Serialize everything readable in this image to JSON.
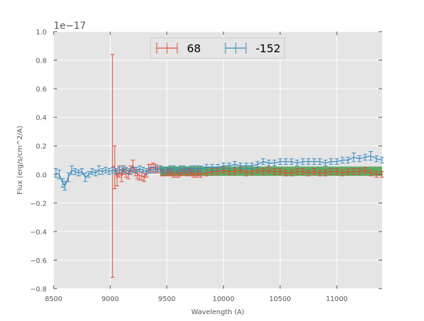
{
  "chart_data": {
    "type": "line",
    "xlabel": "Wavelength (A)",
    "ylabel": "Flux (erg/s/cm^2/A)",
    "offset_text": "1e−17",
    "xlim": [
      8500,
      11400
    ],
    "ylim": [
      -0.8,
      1.0
    ],
    "x_ticks": [
      8500,
      9000,
      9500,
      10000,
      10500,
      11000
    ],
    "x_tick_labels": [
      "8500",
      "9000",
      "9500",
      "10000",
      "10500",
      "11000"
    ],
    "y_ticks": [
      -0.8,
      -0.6,
      -0.4,
      -0.2,
      0.0,
      0.2,
      0.4,
      0.6,
      0.8,
      1.0
    ],
    "y_tick_labels": [
      "−0.8",
      "−0.6",
      "−0.4",
      "−0.2",
      "0.0",
      "0.2",
      "0.4",
      "0.6",
      "0.8",
      "1.0"
    ],
    "grid": true,
    "legend_placement": "top-center",
    "background_color": "#e5e5e5",
    "band": {
      "x_start": 9440,
      "x_end": 11400,
      "y_low": -0.01,
      "y_high": 0.055,
      "color": "#4a9e4a"
    },
    "series": [
      {
        "name": "68",
        "color": "#e24a33",
        "x": [
          9020,
          9040,
          9060,
          9080,
          9100,
          9120,
          9140,
          9160,
          9180,
          9200,
          9220,
          9240,
          9260,
          9280,
          9300,
          9320,
          9340,
          9360,
          9380,
          9400,
          9420,
          9440,
          9460,
          9480,
          9500,
          9520,
          9540,
          9560,
          9580,
          9600,
          9620,
          9640,
          9660,
          9680,
          9700,
          9720,
          9740,
          9760,
          9780,
          9800,
          9850,
          9900,
          9950,
          10000,
          10050,
          10100,
          10150,
          10200,
          10250,
          10300,
          10350,
          10400,
          10450,
          10500,
          10550,
          10600,
          10650,
          10700,
          10750,
          10800,
          10850,
          10900,
          10950,
          11000,
          11050,
          11100,
          11150,
          11200,
          11250,
          11300,
          11350,
          11400
        ],
        "y": [
          0.06,
          0.05,
          -0.02,
          0.02,
          -0.01,
          0.03,
          0.01,
          0.0,
          0.03,
          0.06,
          0.02,
          0.0,
          -0.01,
          -0.01,
          -0.02,
          0.01,
          0.04,
          0.04,
          0.05,
          0.04,
          0.03,
          0.04,
          0.01,
          0.01,
          0.01,
          0.02,
          0.01,
          0.0,
          0.0,
          0.0,
          0.01,
          0.02,
          0.02,
          0.01,
          0.02,
          0.01,
          0.0,
          0.0,
          0.01,
          0.0,
          0.01,
          0.02,
          0.02,
          0.03,
          0.02,
          0.02,
          0.03,
          0.01,
          0.02,
          0.03,
          0.02,
          0.03,
          0.02,
          0.02,
          0.01,
          0.01,
          0.02,
          0.02,
          0.01,
          0.02,
          0.01,
          0.01,
          0.02,
          0.02,
          0.01,
          0.02,
          0.02,
          0.02,
          0.03,
          0.01,
          0.0,
          0.0
        ],
        "err": [
          0.78,
          0.15,
          0.06,
          0.04,
          0.04,
          0.03,
          0.03,
          0.03,
          0.03,
          0.04,
          0.03,
          0.03,
          0.03,
          0.03,
          0.03,
          0.03,
          0.03,
          0.03,
          0.03,
          0.03,
          0.02,
          0.02,
          0.02,
          0.02,
          0.02,
          0.02,
          0.02,
          0.02,
          0.02,
          0.02,
          0.02,
          0.02,
          0.02,
          0.02,
          0.02,
          0.02,
          0.02,
          0.02,
          0.02,
          0.02,
          0.02,
          0.02,
          0.02,
          0.02,
          0.02,
          0.02,
          0.02,
          0.02,
          0.02,
          0.02,
          0.02,
          0.02,
          0.02,
          0.02,
          0.02,
          0.02,
          0.02,
          0.02,
          0.02,
          0.02,
          0.02,
          0.02,
          0.02,
          0.02,
          0.02,
          0.02,
          0.02,
          0.02,
          0.02,
          0.02,
          0.02,
          0.02
        ]
      },
      {
        "name": "-152",
        "color": "#348abd",
        "x": [
          8520,
          8550,
          8580,
          8600,
          8630,
          8660,
          8690,
          8720,
          8750,
          8780,
          8810,
          8840,
          8870,
          8900,
          8930,
          8960,
          8990,
          9020,
          9050,
          9080,
          9110,
          9140,
          9170,
          9200,
          9230,
          9260,
          9290,
          9320,
          9350,
          9380,
          9410,
          9440,
          9470,
          9500,
          9530,
          9560,
          9590,
          9620,
          9650,
          9680,
          9710,
          9740,
          9770,
          9800,
          9850,
          9900,
          9950,
          10000,
          10050,
          10100,
          10150,
          10200,
          10250,
          10300,
          10350,
          10400,
          10450,
          10500,
          10550,
          10600,
          10650,
          10700,
          10750,
          10800,
          10850,
          10900,
          10950,
          11000,
          11050,
          11100,
          11150,
          11200,
          11250,
          11300,
          11350,
          11400
        ],
        "y": [
          0.01,
          0.0,
          -0.06,
          -0.08,
          -0.02,
          0.03,
          0.02,
          0.01,
          0.02,
          -0.02,
          0.0,
          0.02,
          0.01,
          0.03,
          0.02,
          0.03,
          0.02,
          0.03,
          0.02,
          0.03,
          0.04,
          0.03,
          0.02,
          0.03,
          0.03,
          0.04,
          0.03,
          0.02,
          0.03,
          0.03,
          0.04,
          0.04,
          0.03,
          0.03,
          0.04,
          0.04,
          0.03,
          0.04,
          0.04,
          0.03,
          0.04,
          0.04,
          0.04,
          0.04,
          0.05,
          0.05,
          0.05,
          0.06,
          0.06,
          0.07,
          0.06,
          0.06,
          0.06,
          0.07,
          0.09,
          0.08,
          0.08,
          0.09,
          0.09,
          0.09,
          0.08,
          0.09,
          0.09,
          0.09,
          0.09,
          0.08,
          0.09,
          0.09,
          0.1,
          0.1,
          0.12,
          0.11,
          0.12,
          0.13,
          0.11,
          0.1
        ],
        "err": [
          0.03,
          0.03,
          0.03,
          0.03,
          0.03,
          0.03,
          0.02,
          0.02,
          0.02,
          0.03,
          0.02,
          0.02,
          0.02,
          0.03,
          0.02,
          0.02,
          0.02,
          0.02,
          0.02,
          0.02,
          0.02,
          0.02,
          0.02,
          0.02,
          0.02,
          0.02,
          0.02,
          0.02,
          0.02,
          0.02,
          0.02,
          0.02,
          0.02,
          0.02,
          0.02,
          0.02,
          0.02,
          0.02,
          0.02,
          0.02,
          0.02,
          0.02,
          0.02,
          0.02,
          0.02,
          0.02,
          0.02,
          0.02,
          0.02,
          0.02,
          0.02,
          0.02,
          0.02,
          0.02,
          0.02,
          0.02,
          0.02,
          0.02,
          0.02,
          0.02,
          0.02,
          0.02,
          0.02,
          0.02,
          0.02,
          0.02,
          0.02,
          0.02,
          0.02,
          0.02,
          0.03,
          0.02,
          0.02,
          0.03,
          0.02,
          0.02
        ]
      }
    ]
  }
}
